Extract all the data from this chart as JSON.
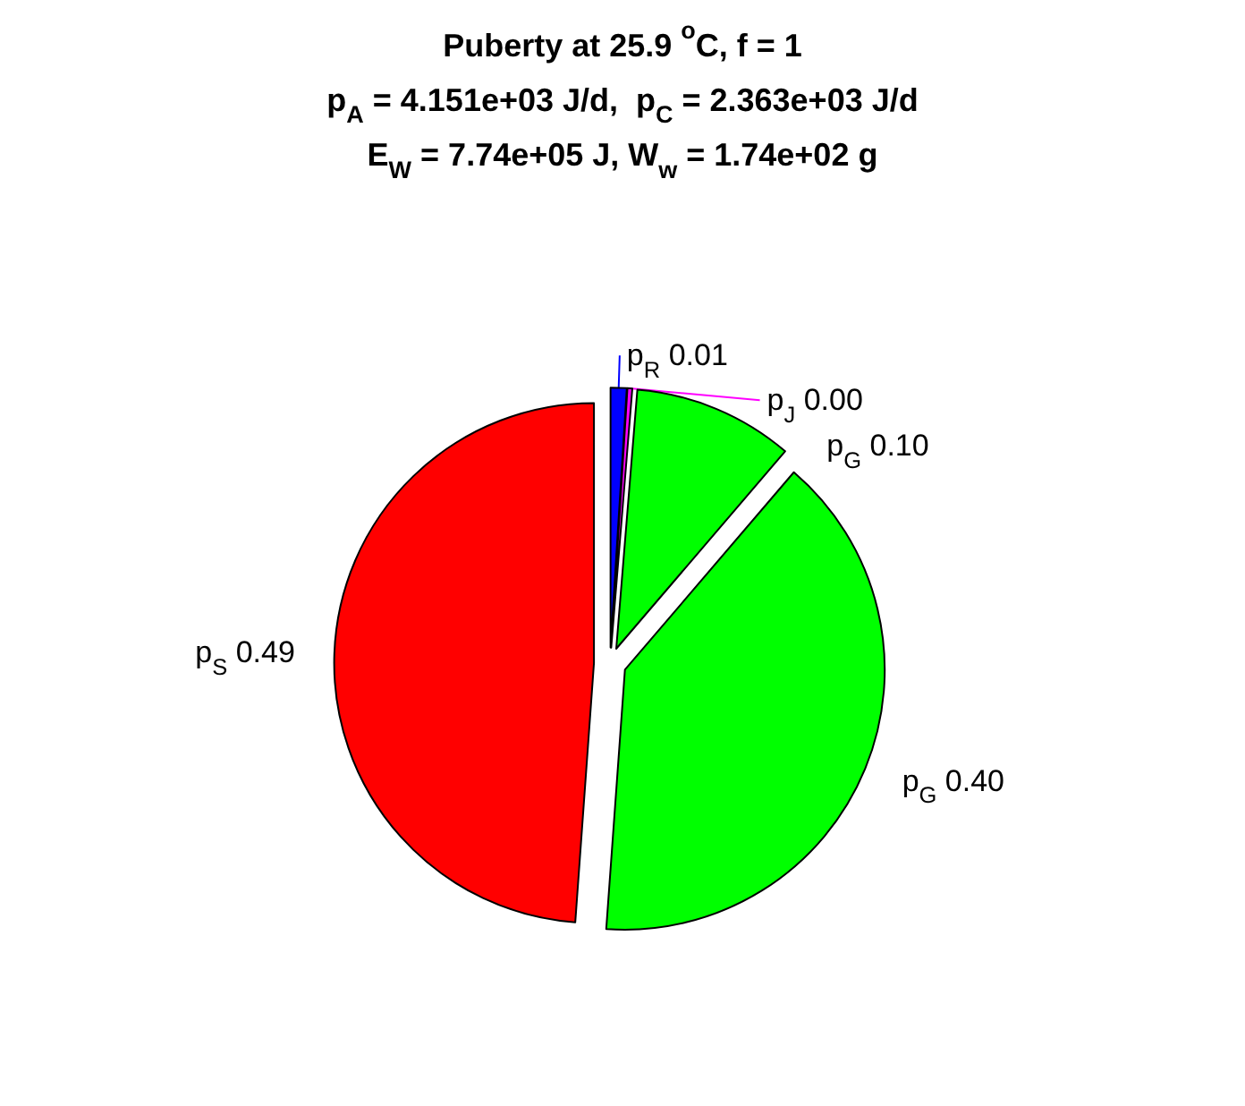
{
  "chart_data": {
    "type": "pie",
    "title": "Puberty at 25.9 $^{o}$C, f = 1\np$_{A}$ = 4.151e+03 J/d,  p$_{C}$ = 2.363e+03 J/d\nE$_{W}$ = 7.74e+05 J, W$_{w}$ = 1.74e+02 g",
    "categories": [
      "p$_{R}$",
      "p$_{J}$",
      "p$_{G}$",
      "p$_{G}$",
      "p$_{S}$"
    ],
    "values": [
      0.01,
      0.003,
      0.1,
      0.4,
      0.49
    ],
    "value_labels": [
      "0.01",
      "0.00",
      "0.10",
      "0.40",
      "0.49"
    ],
    "colors": [
      "#0000ff",
      "#ff00ff",
      "#00ff00",
      "#00ff00",
      "#ff0000"
    ],
    "legend": false
  }
}
